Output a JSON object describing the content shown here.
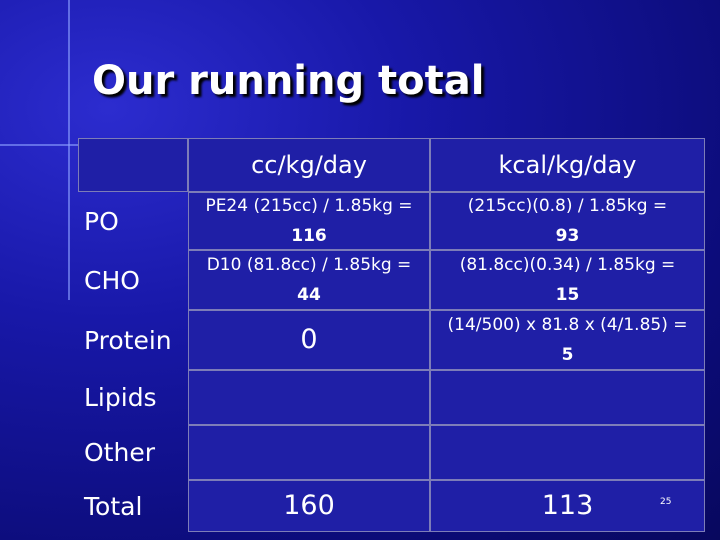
{
  "title": "Our running total",
  "table": {
    "header": [
      "cc/kg/day",
      "kcal/kg/day"
    ],
    "rows": [
      {
        "label": "PO",
        "cells": [
          [
            "PE24 (215cc) / 1.85kg =",
            "116"
          ],
          [
            "(215cc)(0.8) / 1.85kg =",
            "93"
          ]
        ]
      },
      {
        "label": "CHO",
        "cells": [
          [
            "D10 (81.8cc) / 1.85kg =",
            "44"
          ],
          [
            "(81.8cc)(0.34) / 1.85kg =",
            "15"
          ]
        ]
      },
      {
        "label": "Protein",
        "cells": [
          [
            "0"
          ],
          [
            "(14/500) x 81.8 x (4/1.85) =",
            "5"
          ]
        ]
      },
      {
        "label": "Lipids",
        "cells": [
          null,
          null
        ]
      },
      {
        "label": "Other",
        "cells": [
          null,
          null
        ]
      },
      {
        "label": "Total",
        "cells": [
          [
            "160"
          ],
          [
            "113"
          ]
        ]
      }
    ]
  },
  "slide_number": "25"
}
